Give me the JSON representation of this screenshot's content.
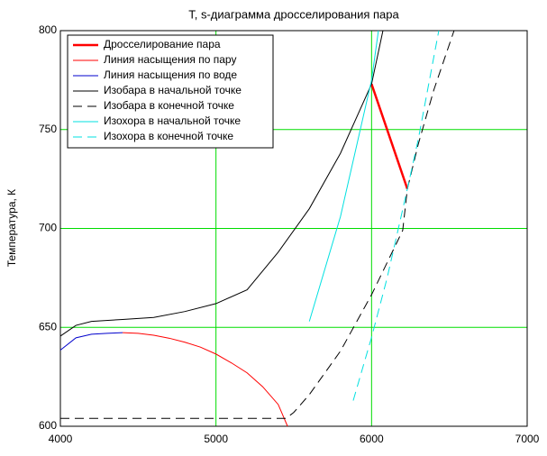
{
  "chart_data": {
    "type": "line",
    "title": "T, s-диаграмма дросселирования пара",
    "ylabel": "Температура, К",
    "xlim": [
      4000,
      7000
    ],
    "xticks": [
      4000,
      5000,
      6000,
      7000
    ],
    "ylim": [
      600,
      800
    ],
    "yticks": [
      600,
      650,
      700,
      750,
      800
    ],
    "grid": true,
    "grid_color": "#00dd00",
    "legend": "upper left",
    "series": [
      {
        "name": "Дросселирование пара",
        "color": "#ff0000",
        "width": 2.5,
        "dashed": false,
        "x": [
          6000,
          6230
        ],
        "values": [
          773,
          720
        ]
      },
      {
        "name": "Линия насыщения по пару",
        "color": "#ff0000",
        "width": 1,
        "dashed": false,
        "x": [
          4400,
          4500,
          4600,
          4700,
          4800,
          4900,
          5000,
          5100,
          5200,
          5300,
          5400,
          5460
        ],
        "values": [
          647.3,
          647,
          646,
          644.5,
          642.5,
          640,
          636.5,
          632,
          627,
          620,
          611,
          600
        ]
      },
      {
        "name": "Линия насыщения по воде",
        "color": "#0000cc",
        "width": 1,
        "dashed": false,
        "x": [
          4000,
          4100,
          4200,
          4300,
          4400
        ],
        "values": [
          638.5,
          644.7,
          646.5,
          647,
          647.3
        ]
      },
      {
        "name": "Изобара в начальной точке",
        "color": "#000000",
        "width": 1,
        "dashed": false,
        "x": [
          4000,
          4100,
          4200,
          4400,
          4600,
          4800,
          5000,
          5200,
          5400,
          5600,
          5800,
          6000,
          6073
        ],
        "values": [
          645.6,
          651,
          653,
          654,
          655,
          658,
          662,
          669,
          688,
          710,
          738,
          773,
          800
        ]
      },
      {
        "name": "Изобара в конечной точке",
        "color": "#000000",
        "width": 1,
        "dashed": true,
        "x": [
          4000,
          5450,
          5500,
          5600,
          5800,
          6000,
          6200,
          6230,
          6300,
          6400,
          6530
        ],
        "values": [
          604,
          604,
          607,
          616,
          638,
          666.5,
          699,
          720,
          742.6,
          770,
          800
        ]
      },
      {
        "name": "Изохора в начальной точке",
        "color": "#00e0e0",
        "width": 1,
        "dashed": false,
        "x": [
          5600,
          5800,
          6000,
          6044
        ],
        "values": [
          653,
          706,
          775,
          800
        ]
      },
      {
        "name": "Изохора в конечной точке",
        "color": "#00e0e0",
        "width": 1,
        "dashed": true,
        "x": [
          5882,
          6000,
          6100,
          6230,
          6300,
          6432
        ],
        "values": [
          613,
          645,
          675,
          720,
          745,
          800
        ]
      }
    ]
  }
}
